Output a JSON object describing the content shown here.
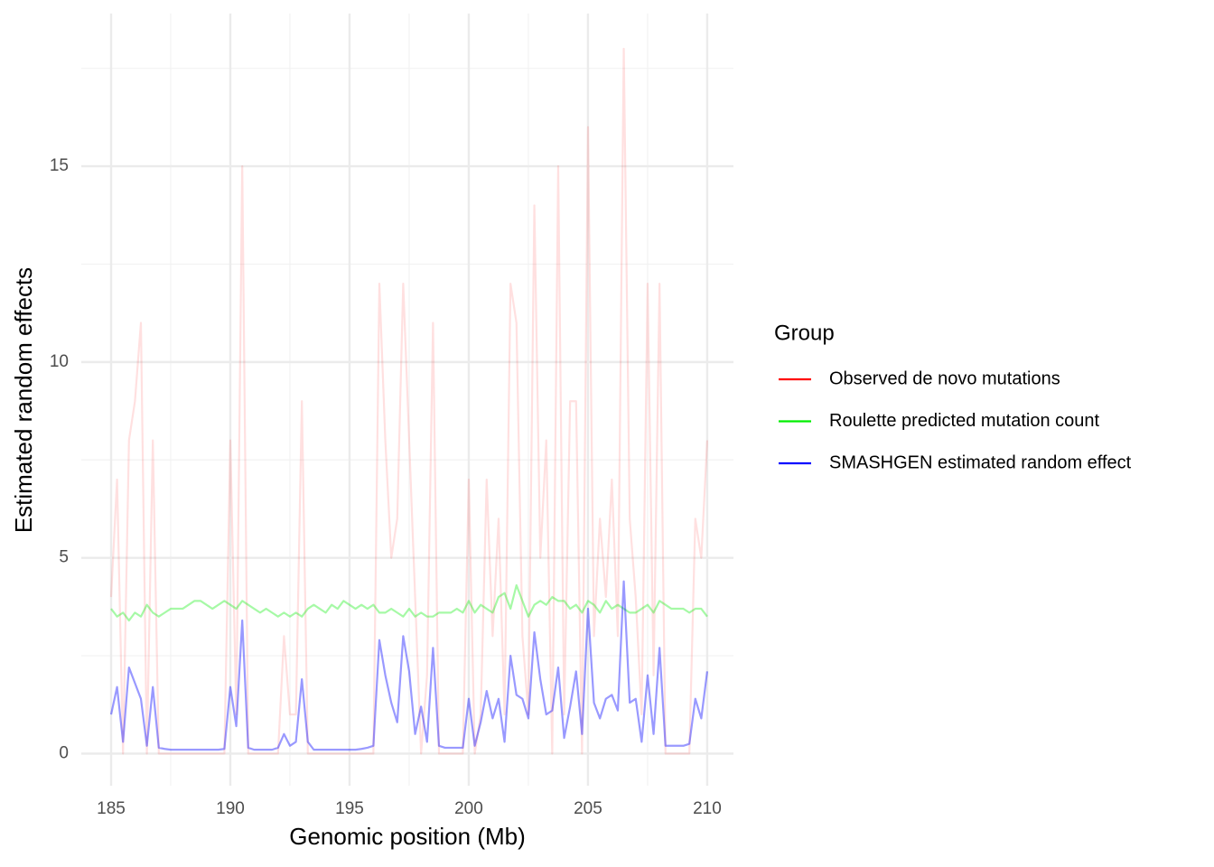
{
  "chart_data": {
    "type": "line",
    "x_label": "Genomic position (Mb)",
    "y_label": "Estimated random effects",
    "legend_title": "Group",
    "legend_position": "right",
    "grid": true,
    "xlim": [
      183.75,
      211.1
    ],
    "ylim": [
      -0.82,
      18.9
    ],
    "xticks": [
      185,
      190,
      195,
      200,
      205,
      210
    ],
    "minor_xticks": [
      187.5,
      192.5,
      197.5,
      202.5,
      207.5
    ],
    "yticks": [
      0,
      5,
      10,
      15
    ],
    "minor_yticks": [
      2.5,
      7.5,
      12.5,
      17.5
    ],
    "x": [
      185,
      185.25,
      185.5,
      185.75,
      186,
      186.25,
      186.5,
      186.75,
      187,
      187.25,
      187.5,
      187.75,
      188,
      188.25,
      188.5,
      188.75,
      189,
      189.25,
      189.5,
      189.75,
      190,
      190.25,
      190.5,
      190.75,
      191,
      191.25,
      191.5,
      191.75,
      192,
      192.25,
      192.5,
      192.75,
      193,
      193.25,
      193.5,
      193.75,
      194,
      194.25,
      194.5,
      194.75,
      195,
      195.25,
      195.5,
      195.75,
      196,
      196.25,
      196.5,
      196.75,
      197,
      197.25,
      197.5,
      197.75,
      198,
      198.25,
      198.5,
      198.75,
      199,
      199.25,
      199.5,
      199.75,
      200,
      200.25,
      200.5,
      200.75,
      201,
      201.25,
      201.5,
      201.75,
      202,
      202.25,
      202.5,
      202.75,
      203,
      203.25,
      203.5,
      203.75,
      204,
      204.25,
      204.5,
      204.75,
      205,
      205.25,
      205.5,
      205.75,
      206,
      206.25,
      206.5,
      206.75,
      207,
      207.25,
      207.5,
      207.75,
      208,
      208.25,
      208.5,
      208.75,
      209,
      209.25,
      209.5,
      209.75,
      210
    ],
    "series": [
      {
        "name": "Observed de novo mutations",
        "color": "#ff0000",
        "opacity": 0.12,
        "values": [
          4,
          7,
          0,
          8,
          9,
          11,
          0,
          8,
          0,
          0,
          0,
          0,
          0,
          0,
          0,
          0,
          0,
          0,
          0,
          0,
          8,
          1,
          15,
          0,
          0,
          0,
          0,
          0,
          0,
          3,
          1,
          1,
          9,
          0,
          0,
          0,
          0,
          0,
          0,
          0,
          0,
          0,
          0,
          0,
          0,
          12,
          8,
          5,
          6,
          12,
          8,
          4,
          0,
          2,
          11,
          0,
          0,
          0,
          0,
          0,
          7,
          0,
          1,
          7,
          3,
          6,
          1,
          12,
          11,
          3,
          1,
          14,
          5,
          8,
          0,
          15,
          1,
          9,
          9,
          0,
          16,
          3,
          6,
          4,
          7,
          3,
          18,
          6,
          4,
          1,
          12,
          2,
          12,
          0,
          0,
          0,
          0,
          0,
          6,
          5,
          8
        ]
      },
      {
        "name": "Roulette predicted mutation count",
        "color": "#00ee00",
        "opacity": 0.35,
        "values": [
          3.7,
          3.5,
          3.6,
          3.4,
          3.6,
          3.5,
          3.8,
          3.6,
          3.5,
          3.6,
          3.7,
          3.7,
          3.7,
          3.8,
          3.9,
          3.9,
          3.8,
          3.7,
          3.8,
          3.9,
          3.8,
          3.7,
          3.9,
          3.8,
          3.7,
          3.6,
          3.7,
          3.6,
          3.5,
          3.6,
          3.5,
          3.6,
          3.5,
          3.7,
          3.8,
          3.7,
          3.6,
          3.8,
          3.7,
          3.9,
          3.8,
          3.7,
          3.8,
          3.7,
          3.8,
          3.6,
          3.6,
          3.7,
          3.6,
          3.5,
          3.7,
          3.5,
          3.6,
          3.5,
          3.5,
          3.6,
          3.6,
          3.6,
          3.7,
          3.6,
          3.9,
          3.6,
          3.8,
          3.7,
          3.6,
          4.0,
          4.1,
          3.7,
          4.3,
          3.9,
          3.5,
          3.8,
          3.9,
          3.8,
          4.0,
          3.9,
          3.9,
          3.7,
          3.8,
          3.6,
          3.9,
          3.8,
          3.6,
          3.9,
          3.7,
          3.8,
          3.7,
          3.6,
          3.6,
          3.7,
          3.8,
          3.6,
          3.9,
          3.8,
          3.7,
          3.7,
          3.7,
          3.6,
          3.7,
          3.7,
          3.5
        ]
      },
      {
        "name": "SMASHGEN estimated random effect",
        "color": "#0000ff",
        "opacity": 0.4,
        "values": [
          1.0,
          1.7,
          0.3,
          2.2,
          1.8,
          1.4,
          0.2,
          1.7,
          0.15,
          0.12,
          0.1,
          0.1,
          0.1,
          0.1,
          0.1,
          0.1,
          0.1,
          0.1,
          0.1,
          0.12,
          1.7,
          0.7,
          3.4,
          0.15,
          0.1,
          0.1,
          0.1,
          0.1,
          0.15,
          0.5,
          0.2,
          0.3,
          1.9,
          0.3,
          0.1,
          0.1,
          0.1,
          0.1,
          0.1,
          0.1,
          0.1,
          0.1,
          0.12,
          0.15,
          0.2,
          2.9,
          2.0,
          1.3,
          0.8,
          3.0,
          2.1,
          0.5,
          1.2,
          0.3,
          2.7,
          0.2,
          0.15,
          0.15,
          0.15,
          0.15,
          1.4,
          0.2,
          0.8,
          1.6,
          0.9,
          1.4,
          0.3,
          2.5,
          1.5,
          1.4,
          0.9,
          3.1,
          1.9,
          1.0,
          1.1,
          2.2,
          0.4,
          1.2,
          2.1,
          0.5,
          3.7,
          1.3,
          0.9,
          1.4,
          1.5,
          1.1,
          4.4,
          1.3,
          1.4,
          0.3,
          2.0,
          0.5,
          2.7,
          0.2,
          0.2,
          0.2,
          0.2,
          0.25,
          1.4,
          0.9,
          2.1
        ]
      }
    ]
  }
}
